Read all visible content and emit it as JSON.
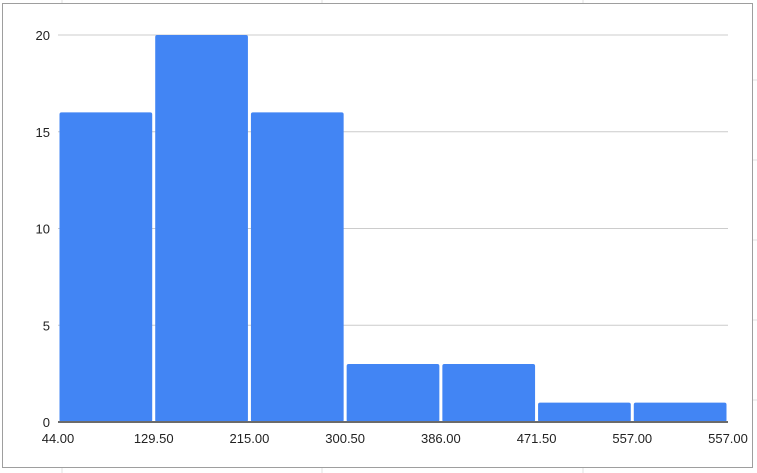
{
  "chart_data": {
    "type": "bar",
    "subtype": "histogram",
    "title": "",
    "xlabel": "",
    "ylabel": "",
    "x_tick_labels": [
      "44.00",
      "129.50",
      "215.00",
      "300.50",
      "386.00",
      "471.50",
      "557.00",
      "557.00"
    ],
    "bins": [
      {
        "from": 44.0,
        "to": 129.5,
        "count": 16
      },
      {
        "from": 129.5,
        "to": 215.0,
        "count": 20
      },
      {
        "from": 215.0,
        "to": 300.5,
        "count": 16
      },
      {
        "from": 300.5,
        "to": 386.0,
        "count": 3
      },
      {
        "from": 386.0,
        "to": 471.5,
        "count": 3
      },
      {
        "from": 471.5,
        "to": 557.0,
        "count": 1
      },
      {
        "from": 557.0,
        "to": 557.0,
        "count": 1
      }
    ],
    "ylim": [
      0,
      20
    ],
    "y_ticks": [
      0,
      5,
      10,
      15,
      20
    ],
    "grid": true,
    "legend": "none",
    "colors": {
      "bar": "#4285f4",
      "grid": "#cccccc",
      "baseline": "#6b6b6b"
    }
  }
}
